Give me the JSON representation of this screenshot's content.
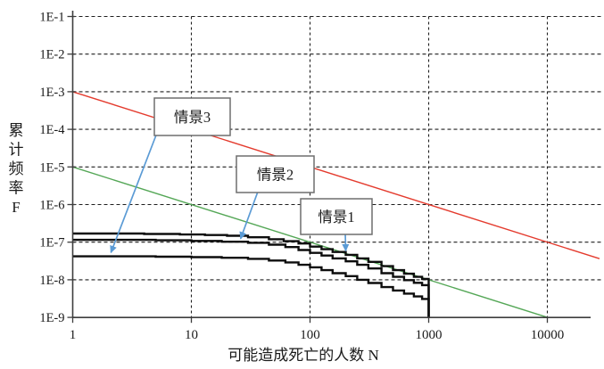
{
  "figure": {
    "background": "#ffffff",
    "description_visible_text_only": true
  },
  "chart_data": {
    "type": "line",
    "title": "",
    "xlabel": "可能造成死亡的人数 N",
    "ylabel": "累计频率F",
    "ylabel_chars": [
      "累",
      "计",
      "频",
      "率",
      "F"
    ],
    "x_scale": "log",
    "y_scale": "log",
    "xlim": [
      1,
      27500
    ],
    "ylim": [
      1e-09,
      0.1
    ],
    "grid": true,
    "legend_position": "none",
    "x_tick_values": [
      1,
      10,
      100,
      1000,
      10000
    ],
    "x_tick_labels": [
      "1",
      "10",
      "100",
      "1000",
      "10000"
    ],
    "y_tick_values": [
      0.1,
      0.01,
      0.001,
      0.0001,
      1e-05,
      1e-06,
      1e-07,
      1e-08,
      1e-09
    ],
    "y_tick_labels": [
      "1E-1",
      "1E-2",
      "1E-3",
      "1E-4",
      "1E-5",
      "1E-6",
      "1E-7",
      "1E-8",
      "1E-9"
    ],
    "series": [
      {
        "name": "情景1",
        "color": "#0d0d0d",
        "style": "step",
        "drop_to_bottom_at_end": true,
        "points": [
          [
            1,
            1.7e-07
          ],
          [
            4,
            1.65e-07
          ],
          [
            8,
            1.6e-07
          ],
          [
            13,
            1.55e-07
          ],
          [
            20,
            1.48e-07
          ],
          [
            30,
            1.35e-07
          ],
          [
            45,
            1.2e-07
          ],
          [
            60,
            1.06e-07
          ],
          [
            80,
            9.2e-08
          ],
          [
            100,
            7.6e-08
          ],
          [
            125,
            6.5e-08
          ],
          [
            155,
            5.5e-08
          ],
          [
            200,
            4.6e-08
          ],
          [
            250,
            3.7e-08
          ],
          [
            310,
            3e-08
          ],
          [
            400,
            2.3e-08
          ],
          [
            500,
            1.8e-08
          ],
          [
            620,
            1.45e-08
          ],
          [
            750,
            1.2e-08
          ],
          [
            880,
            1.05e-08
          ],
          [
            1000,
            9.5e-09
          ]
        ]
      },
      {
        "name": "情景2",
        "color": "#0d0d0d",
        "style": "step",
        "drop_to_bottom_at_end": true,
        "points": [
          [
            1,
            1.15e-07
          ],
          [
            5,
            1.12e-07
          ],
          [
            10,
            1.08e-07
          ],
          [
            18,
            1.03e-07
          ],
          [
            30,
            9.6e-08
          ],
          [
            45,
            8.6e-08
          ],
          [
            62,
            7.4e-08
          ],
          [
            80,
            6.2e-08
          ],
          [
            100,
            5.2e-08
          ],
          [
            125,
            4.4e-08
          ],
          [
            155,
            3.7e-08
          ],
          [
            200,
            3.1e-08
          ],
          [
            250,
            2.5e-08
          ],
          [
            310,
            2e-08
          ],
          [
            400,
            1.5e-08
          ],
          [
            500,
            1.2e-08
          ],
          [
            620,
            9.8e-09
          ],
          [
            750,
            8.3e-09
          ],
          [
            880,
            7.2e-09
          ],
          [
            1000,
            6.4e-09
          ]
        ]
      },
      {
        "name": "情景3",
        "color": "#0d0d0d",
        "style": "step",
        "drop_to_bottom_at_end": true,
        "points": [
          [
            1,
            4.2e-08
          ],
          [
            5,
            4.1e-08
          ],
          [
            10,
            4e-08
          ],
          [
            18,
            3.85e-08
          ],
          [
            30,
            3.6e-08
          ],
          [
            45,
            3.25e-08
          ],
          [
            62,
            2.9e-08
          ],
          [
            80,
            2.5e-08
          ],
          [
            100,
            2.15e-08
          ],
          [
            125,
            1.8e-08
          ],
          [
            155,
            1.5e-08
          ],
          [
            200,
            1.25e-08
          ],
          [
            250,
            1e-08
          ],
          [
            310,
            8.2e-09
          ],
          [
            400,
            6.4e-09
          ],
          [
            500,
            5.2e-09
          ],
          [
            620,
            4.3e-09
          ],
          [
            750,
            3.6e-09
          ],
          [
            880,
            3.1e-09
          ],
          [
            1000,
            2.7e-09
          ]
        ]
      }
    ],
    "reference_lines": [
      {
        "name": "upper-criterion-line",
        "equation": "F = 1E-3 / N",
        "color": "#e43b2e",
        "x": [
          1,
          27500
        ],
        "y": [
          0.001,
          3.64e-08
        ]
      },
      {
        "name": "lower-criterion-line",
        "equation": "F = 1E-5 / N",
        "color": "#55a757",
        "x": [
          1,
          10000
        ],
        "y": [
          1e-05,
          1e-09
        ]
      }
    ],
    "annotations": [
      {
        "label": "情景1",
        "target": {
          "N": 200,
          "F": 5e-08
        }
      },
      {
        "label": "情景2",
        "target": {
          "N": 26,
          "F": 1.05e-07
        }
      },
      {
        "label": "情景3",
        "target": {
          "N": 2.1,
          "F": 4.5e-08
        }
      }
    ],
    "annotation_arrow_color": "#5b9bd5",
    "annotation_box_fill": "#ffffff",
    "annotation_box_border": "#6e6e6e",
    "grid_color": "#1f1f1f",
    "axis_color": "#3d3d3d",
    "curve_color": "#0d0d0d"
  }
}
